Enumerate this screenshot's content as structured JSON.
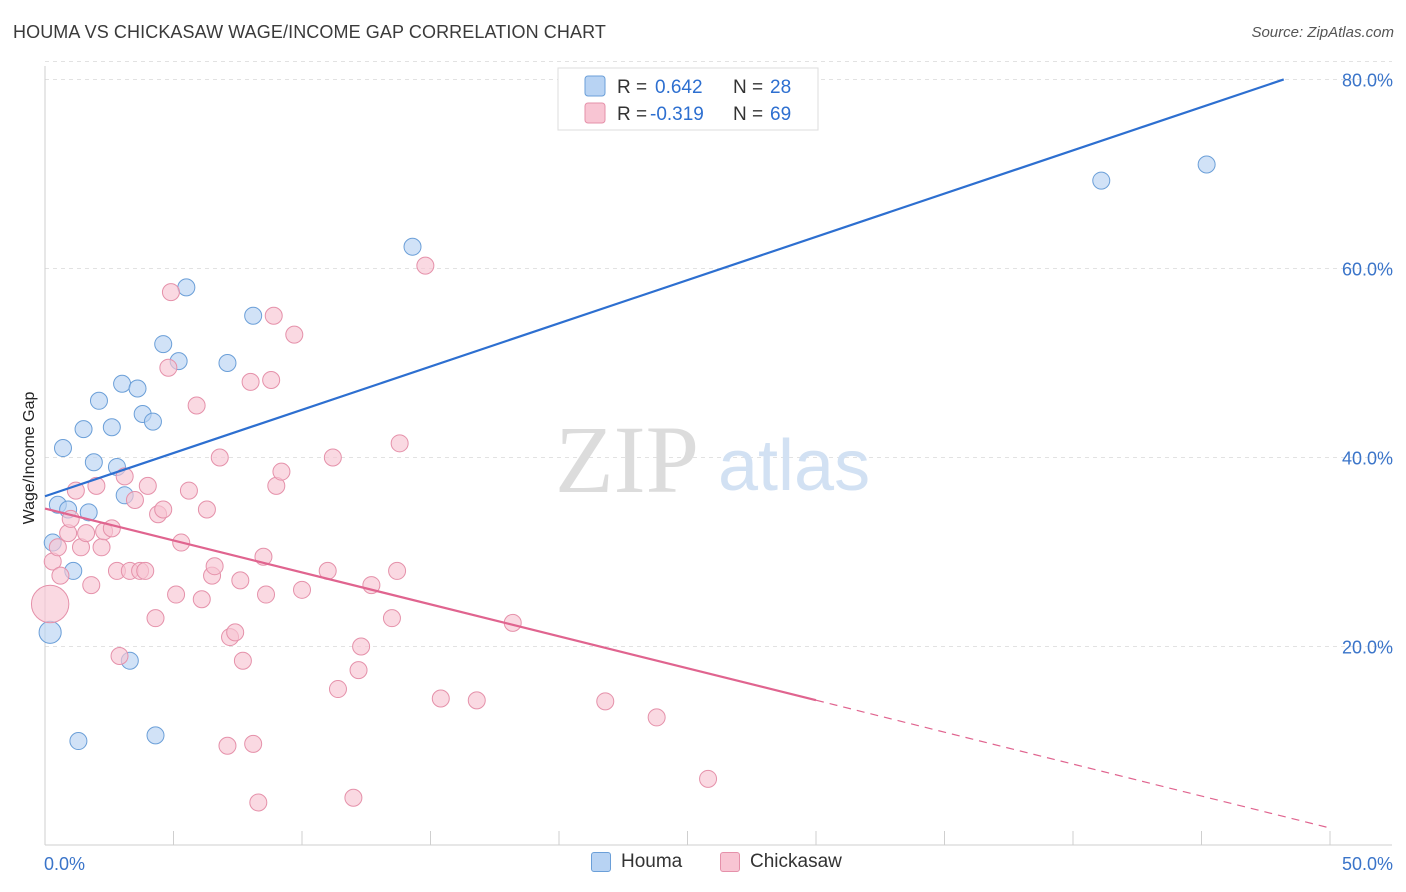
{
  "header": {
    "title": "HOUMA VS CHICKASAW WAGE/INCOME GAP CORRELATION CHART",
    "source": "Source: ZipAtlas.com"
  },
  "watermark": {
    "zip": "ZIP",
    "atlas": "atlas"
  },
  "legend_top": {
    "r_label": "R =",
    "n_label": "N =",
    "rows": [
      {
        "series": "Houma",
        "r": "0.642",
        "n": "28"
      },
      {
        "series": "Chickasaw",
        "r": "-0.319",
        "n": "69"
      }
    ]
  },
  "legend_bottom": [
    {
      "label": "Houma"
    },
    {
      "label": "Chickasaw"
    }
  ],
  "colors": {
    "houma_fill": "#b8d3f3",
    "houma_stroke": "#6b9fd8",
    "houma_line": "#2d6fd0",
    "chickasaw_fill": "#f8c5d3",
    "chickasaw_stroke": "#e591aa",
    "chickasaw_line": "#e0648f",
    "tick_text": "#3a74c9"
  },
  "chart_data": {
    "type": "scatter",
    "title": "HOUMA VS CHICKASAW WAGE/INCOME GAP CORRELATION CHART",
    "xlabel": "",
    "ylabel": "Wage/Income Gap",
    "xlim": [
      0,
      50
    ],
    "ylim": [
      -1,
      81
    ],
    "x_tick_labels": [
      {
        "value": 0,
        "label": "0.0%"
      },
      {
        "value": 50,
        "label": "50.0%"
      }
    ],
    "y_ticks": [
      {
        "value": 20,
        "label": "20.0%"
      },
      {
        "value": 40,
        "label": "40.0%"
      },
      {
        "value": 60,
        "label": "60.0%"
      },
      {
        "value": 80,
        "label": "80.0%"
      }
    ],
    "grid": true,
    "series": [
      {
        "name": "Houma",
        "r": 0.642,
        "n": 28,
        "points": [
          [
            0.2,
            21.5,
            1.3
          ],
          [
            0.3,
            31.0,
            1
          ],
          [
            0.5,
            35.0,
            1
          ],
          [
            0.7,
            41.0,
            1
          ],
          [
            0.9,
            34.5,
            1
          ],
          [
            1.1,
            28.0,
            1
          ],
          [
            1.3,
            10.0,
            1
          ],
          [
            1.5,
            43.0,
            1
          ],
          [
            1.7,
            34.2,
            1
          ],
          [
            1.9,
            39.5,
            1
          ],
          [
            2.1,
            46.0,
            1
          ],
          [
            2.6,
            43.2,
            1
          ],
          [
            2.8,
            39.0,
            1
          ],
          [
            3.0,
            47.8,
            1
          ],
          [
            3.1,
            36.0,
            1
          ],
          [
            3.3,
            18.5,
            1
          ],
          [
            3.6,
            47.3,
            1
          ],
          [
            3.8,
            44.6,
            1
          ],
          [
            4.2,
            43.8,
            1
          ],
          [
            4.3,
            10.6,
            1
          ],
          [
            4.6,
            52.0,
            1
          ],
          [
            5.2,
            50.2,
            1
          ],
          [
            5.5,
            58.0,
            1
          ],
          [
            7.1,
            50.0,
            1
          ],
          [
            8.1,
            55.0,
            1
          ],
          [
            14.3,
            62.3,
            1
          ],
          [
            41.1,
            69.3,
            1
          ],
          [
            45.2,
            71.0,
            1
          ]
        ],
        "trend": {
          "x0": 0,
          "y0": 35.9,
          "x1": 48.2,
          "y1": 80.0,
          "x_solid_end": 48.2
        }
      },
      {
        "name": "Chickasaw",
        "r": -0.319,
        "n": 69,
        "points": [
          [
            0.2,
            24.5,
            2.2
          ],
          [
            0.3,
            29.0,
            1
          ],
          [
            0.5,
            30.5,
            1
          ],
          [
            0.6,
            27.5,
            1
          ],
          [
            0.9,
            32.0,
            1
          ],
          [
            1.0,
            33.5,
            1
          ],
          [
            1.2,
            36.5,
            1
          ],
          [
            1.4,
            30.5,
            1
          ],
          [
            1.6,
            32.0,
            1
          ],
          [
            1.8,
            26.5,
            1
          ],
          [
            2.0,
            37.0,
            1
          ],
          [
            2.2,
            30.5,
            1
          ],
          [
            2.3,
            32.2,
            1
          ],
          [
            2.6,
            32.5,
            1
          ],
          [
            2.8,
            28.0,
            1
          ],
          [
            2.9,
            19.0,
            1
          ],
          [
            3.1,
            38.0,
            1
          ],
          [
            3.3,
            28.0,
            1
          ],
          [
            3.5,
            35.5,
            1
          ],
          [
            3.7,
            28.0,
            1
          ],
          [
            3.9,
            28.0,
            1
          ],
          [
            4.0,
            37.0,
            1
          ],
          [
            4.3,
            23.0,
            1
          ],
          [
            4.4,
            34.0,
            1
          ],
          [
            4.6,
            34.5,
            1
          ],
          [
            4.8,
            49.5,
            1
          ],
          [
            4.9,
            57.5,
            1
          ],
          [
            5.1,
            25.5,
            1
          ],
          [
            5.3,
            31.0,
            1
          ],
          [
            5.6,
            36.5,
            1
          ],
          [
            5.9,
            45.5,
            1
          ],
          [
            6.1,
            25.0,
            1
          ],
          [
            6.3,
            34.5,
            1
          ],
          [
            6.5,
            27.5,
            1
          ],
          [
            6.6,
            28.5,
            1
          ],
          [
            6.8,
            40.0,
            1
          ],
          [
            7.1,
            9.5,
            1
          ],
          [
            7.2,
            21.0,
            1
          ],
          [
            7.4,
            21.5,
            1
          ],
          [
            7.6,
            27.0,
            1
          ],
          [
            7.7,
            18.5,
            1
          ],
          [
            8.0,
            48.0,
            1
          ],
          [
            8.1,
            9.7,
            1
          ],
          [
            8.3,
            3.5,
            1
          ],
          [
            8.5,
            29.5,
            1
          ],
          [
            8.6,
            25.5,
            1
          ],
          [
            8.8,
            48.2,
            1
          ],
          [
            8.9,
            55.0,
            1
          ],
          [
            9.0,
            37.0,
            1
          ],
          [
            9.2,
            38.5,
            1
          ],
          [
            9.7,
            53.0,
            1
          ],
          [
            10.0,
            26.0,
            1
          ],
          [
            11.0,
            28.0,
            1
          ],
          [
            11.2,
            40.0,
            1
          ],
          [
            11.4,
            15.5,
            1
          ],
          [
            12.0,
            4.0,
            1
          ],
          [
            12.2,
            17.5,
            1
          ],
          [
            12.3,
            20.0,
            1
          ],
          [
            12.7,
            26.5,
            1
          ],
          [
            13.5,
            23.0,
            1
          ],
          [
            13.7,
            28.0,
            1
          ],
          [
            13.8,
            41.5,
            1
          ],
          [
            14.8,
            60.3,
            1
          ],
          [
            15.4,
            14.5,
            1
          ],
          [
            16.8,
            14.3,
            1
          ],
          [
            18.2,
            22.5,
            1
          ],
          [
            21.8,
            14.2,
            1
          ],
          [
            23.8,
            12.5,
            1
          ],
          [
            25.8,
            6.0,
            1
          ]
        ],
        "trend": {
          "x0": 0,
          "y0": 34.6,
          "x1": 50,
          "y1": 0.8,
          "x_solid_end": 30.0
        }
      }
    ]
  }
}
